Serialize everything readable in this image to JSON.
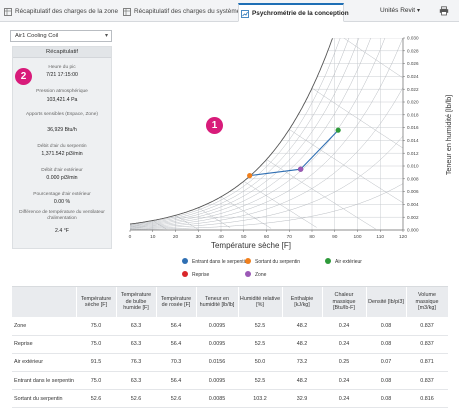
{
  "tabs": [
    {
      "label": "Récapitulatif des charges de la zone",
      "active": false
    },
    {
      "label": "Récapitulatif des charges du système",
      "active": false
    },
    {
      "label": "Psychrométrie de la conception",
      "active": true
    }
  ],
  "units_label": "Unités Revit",
  "selector": {
    "value": "Air1 Cooling Coil"
  },
  "summary": {
    "header": "Récapitulatif",
    "items": [
      {
        "label": "Heure du pic",
        "value": "7/21 17:15:00"
      },
      {
        "label": "Pression atmosphérique",
        "value": "103,421.4 Pa"
      },
      {
        "label": "Apports sensibles (Espace, Zone)",
        "value": "36,929 Btu/h"
      },
      {
        "label": "Débit d'air du serpentin",
        "value": "1,371.542 pi3/min"
      },
      {
        "label": "Débit d'air extérieur",
        "value": "0.000 pi3/min"
      },
      {
        "label": "Pourcentage d'air extérieur",
        "value": "0.00 %"
      },
      {
        "label": "Différence de température du ventilateur d'alimentation",
        "value": "2.4 °F"
      }
    ]
  },
  "badges": [
    "1",
    "2",
    "3"
  ],
  "icons": {
    "tab": "sheet-icon",
    "print": "print-icon",
    "chevron": "chevron-down-icon"
  },
  "chart_data": {
    "type": "scatter",
    "xlabel": "Température sèche [F]",
    "ylabel": "Teneur en humidité [lb/lb]",
    "xlim": [
      0,
      120
    ],
    "ylim": [
      0,
      0.03
    ],
    "x_ticks": [
      "0",
      "10",
      "20",
      "30",
      "40",
      "50",
      "60",
      "70",
      "80",
      "90",
      "100",
      "110",
      "120"
    ],
    "y_ticks": [
      "0.000",
      "0.002",
      "0.004",
      "0.006",
      "0.008",
      "0.010",
      "0.012",
      "0.014",
      "0.016",
      "0.018",
      "0.020",
      "0.022",
      "0.024",
      "0.026",
      "0.028",
      "0.030"
    ],
    "grid": true,
    "legend_position": "bottom",
    "series": [
      {
        "name": "Entrant dans le serpentin",
        "color": "#2f6fb3",
        "x": 75.0,
        "y": 0.0095
      },
      {
        "name": "Sortant du serpentin",
        "color": "#f07f1c",
        "x": 52.6,
        "y": 0.0085
      },
      {
        "name": "Air extérieur",
        "color": "#2e9a3a",
        "x": 91.5,
        "y": 0.0156
      },
      {
        "name": "Reprise",
        "color": "#d9262a",
        "x": 75.0,
        "y": 0.0095
      },
      {
        "name": "Zone",
        "color": "#9b59b6",
        "x": 75.0,
        "y": 0.0095
      }
    ],
    "process_line": {
      "color": "#2f6fb3",
      "points": [
        [
          52.6,
          0.0085
        ],
        [
          75.0,
          0.0095
        ],
        [
          91.5,
          0.0156
        ]
      ]
    }
  },
  "table": {
    "headers": [
      "",
      "Température sèche [F]",
      "Température de bulbe humide [F]",
      "Température de rosée [F]",
      "Teneur en humidité [lb/lb]",
      "Humidité relative [%]",
      "Enthalpie [kJ/kg]",
      "Chaleur massique [Btu/lb-F]",
      "Densité [lb/pi3]",
      "Volume massique [m3/kg]"
    ],
    "rows": [
      [
        "Zone",
        "75.0",
        "63.3",
        "56.4",
        "0.0095",
        "52.5",
        "48.2",
        "0.24",
        "0.08",
        "0.837"
      ],
      [
        "Reprise",
        "75.0",
        "63.3",
        "56.4",
        "0.0095",
        "52.5",
        "48.2",
        "0.24",
        "0.08",
        "0.837"
      ],
      [
        "Air extérieur",
        "91.5",
        "76.3",
        "70.3",
        "0.0156",
        "50.0",
        "73.2",
        "0.25",
        "0.07",
        "0.871"
      ],
      [
        "Entrant dans le serpentin",
        "75.0",
        "63.3",
        "56.4",
        "0.0095",
        "52.5",
        "48.2",
        "0.24",
        "0.08",
        "0.837"
      ],
      [
        "Sortant du serpentin",
        "52.6",
        "52.6",
        "52.6",
        "0.0085",
        "103.2",
        "32.9",
        "0.24",
        "0.08",
        "0.816"
      ]
    ]
  }
}
